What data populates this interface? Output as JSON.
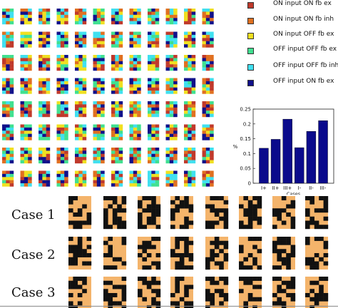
{
  "legend": [
    {
      "label": "ON input ON fb ex",
      "color": "#c0392b"
    },
    {
      "label": "ON input ON fb inh",
      "color": "#e07020"
    },
    {
      "label": "ON input OFF fb ex",
      "color": "#f0e020"
    },
    {
      "label": "OFF input OFF fb ex",
      "color": "#40e090"
    },
    {
      "label": "OFF input OFF fb inh",
      "color": "#40e0f0"
    },
    {
      "label": "OFF input ON fb ex",
      "color": "#10108a"
    }
  ],
  "case_labels": [
    "Case 1",
    "Case 2",
    "Case 3"
  ],
  "chart_data": {
    "type": "bar",
    "categories": [
      "I+",
      "II+",
      "III+",
      "I-",
      "II-",
      "III-"
    ],
    "values": [
      0.118,
      0.148,
      0.216,
      0.12,
      0.175,
      0.211
    ],
    "xlabel": "Cases",
    "ylabel": "%",
    "ylim": [
      0,
      0.25
    ],
    "yticks": [
      "0",
      "0.05",
      "0.1",
      "0.15",
      "0.2",
      "0.25"
    ],
    "bar_color": "#0a0a8c"
  },
  "palette": [
    "#c0392b",
    "#e07020",
    "#f0e020",
    "#40e090",
    "#40e0f0",
    "#10108a"
  ],
  "binary_colors": [
    "#f4b46b",
    "#111111"
  ]
}
